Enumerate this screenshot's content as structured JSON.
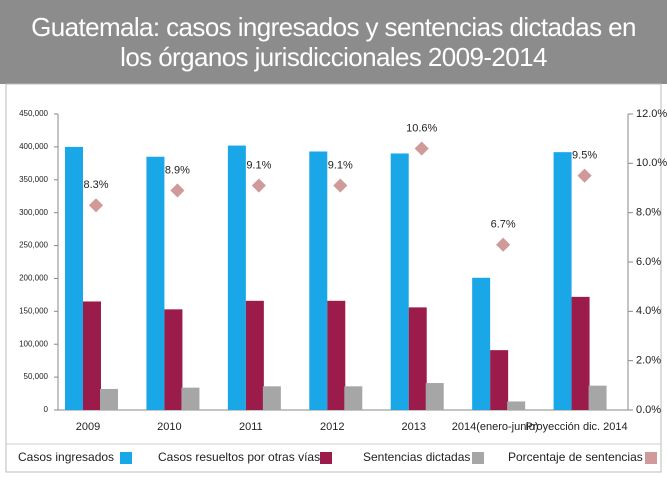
{
  "chart_data": {
    "type": "bar",
    "title": "Guatemala: casos ingresados y sentencias dictadas en los órganos jurisdiccionales 2009-2014",
    "categories": [
      "2009",
      "2010",
      "2011",
      "2012",
      "2013",
      "2014(enero-junio)",
      "Proyección dic. 2014"
    ],
    "series": [
      {
        "name": "Casos ingresados",
        "color": "#1aa7e8",
        "values": [
          400000,
          385000,
          402000,
          393000,
          390000,
          201000,
          392000
        ]
      },
      {
        "name": "Casos resueltos por otras vías",
        "color": "#9b1b4b",
        "values": [
          165000,
          153000,
          166000,
          166000,
          156000,
          91000,
          172000
        ]
      },
      {
        "name": "Sentencias dictadas",
        "color": "#a6a6a6",
        "values": [
          32000,
          34000,
          36000,
          36000,
          41000,
          13000,
          37000
        ]
      },
      {
        "name": "Porcentaje de sentencias",
        "color": "#d09a9a",
        "type": "scatter",
        "axis": "y2",
        "values": [
          8.3,
          8.9,
          9.1,
          9.1,
          10.6,
          6.7,
          9.5
        ],
        "value_labels": [
          "8.3%",
          "8.9%",
          "9.1%",
          "9.1%",
          "10.6%",
          "6.7%",
          "9.5%"
        ]
      }
    ],
    "ylim": [
      0,
      450000
    ],
    "yticks": [
      0,
      {
        "value": 50000,
        "label": "50,000"
      },
      {
        "value": 100000,
        "label": "100,000"
      },
      {
        "value": 150000,
        "label": "150,000"
      },
      {
        "value": 200000,
        "label": "200,000"
      },
      {
        "value": 250000,
        "label": "250,000"
      },
      {
        "value": 300000,
        "label": "300,000"
      },
      {
        "value": 350000,
        "label": "350,000"
      },
      {
        "value": 400000,
        "label": "400,000"
      },
      {
        "value": 450000,
        "label": "450,000"
      }
    ],
    "y2lim": [
      0,
      12
    ],
    "y2ticks": [
      {
        "value": 0,
        "label": "0.0%"
      },
      {
        "value": 2,
        "label": "2.0%"
      },
      {
        "value": 4,
        "label": "4.0%"
      },
      {
        "value": 6,
        "label": "6.0%"
      },
      {
        "value": 8,
        "label": "8.0%"
      },
      {
        "value": 10,
        "label": "10.0%"
      },
      {
        "value": 12,
        "label": "12.0%"
      }
    ],
    "legend": "bottom"
  }
}
